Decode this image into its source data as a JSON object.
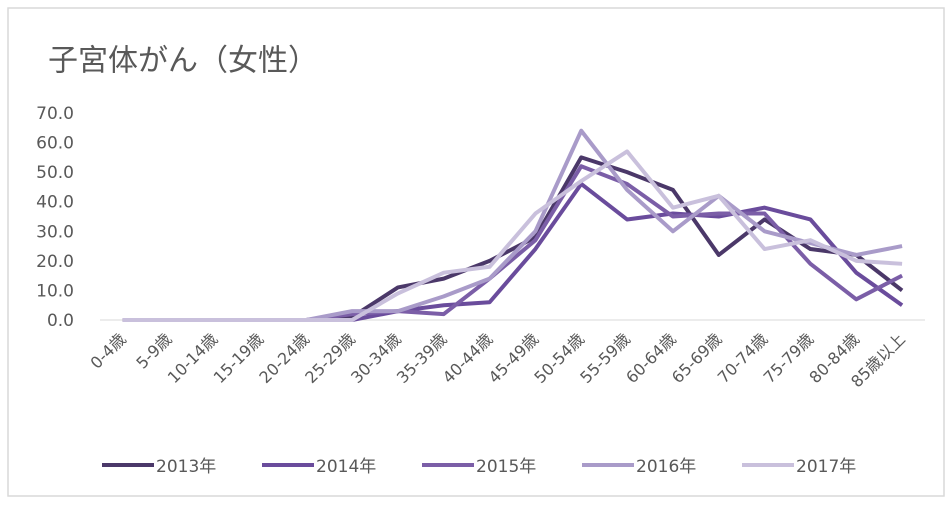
{
  "chart_data": {
    "type": "line",
    "title": "子宮体がん（女性）",
    "categories": [
      "0-4歳",
      "5-9歳",
      "10-14歳",
      "15-19歳",
      "20-24歳",
      "25-29歳",
      "30-34歳",
      "35-39歳",
      "40-44歳",
      "45-49歳",
      "50-54歳",
      "55-59歳",
      "60-64歳",
      "65-69歳",
      "70-74歳",
      "75-79歳",
      "80-84歳",
      "85歳以上"
    ],
    "series": [
      {
        "name": "2013年",
        "color": "#4b3869",
        "values": [
          0,
          0,
          0,
          0,
          0,
          1,
          11,
          14,
          20,
          28,
          55,
          50,
          44,
          22,
          34,
          24,
          22,
          10
        ]
      },
      {
        "name": "2014年",
        "color": "#6a4c9c",
        "values": [
          0,
          0,
          0,
          0,
          0,
          0,
          3,
          5,
          6,
          24,
          46,
          34,
          36,
          35,
          38,
          34,
          16,
          5
        ]
      },
      {
        "name": "2015年",
        "color": "#7b5ea7",
        "values": [
          0,
          0,
          0,
          0,
          0,
          2,
          3,
          2,
          14,
          27,
          52,
          46,
          35,
          36,
          36,
          19,
          7,
          15
        ]
      },
      {
        "name": "2016年",
        "color": "#a99bc9",
        "values": [
          0,
          0,
          0,
          0,
          0,
          3,
          3,
          8,
          14,
          30,
          64,
          44,
          30,
          42,
          30,
          26,
          22,
          25
        ]
      },
      {
        "name": "2017年",
        "color": "#c9c0dc",
        "values": [
          0,
          0,
          0,
          0,
          0,
          0,
          9,
          16,
          18,
          36,
          47,
          57,
          38,
          42,
          24,
          27,
          20,
          19
        ]
      }
    ],
    "ylim": [
      0,
      70
    ],
    "yticks": [
      {
        "value": 0,
        "label": "0.0"
      },
      {
        "value": 10,
        "label": "10.0"
      },
      {
        "value": 20,
        "label": "20.0"
      },
      {
        "value": 30,
        "label": "30.0"
      },
      {
        "value": 40,
        "label": "40.0"
      },
      {
        "value": 50,
        "label": "50.0"
      },
      {
        "value": 60,
        "label": "60.0"
      },
      {
        "value": 70,
        "label": "70.0"
      }
    ],
    "grid": false,
    "legend": "bottom"
  }
}
